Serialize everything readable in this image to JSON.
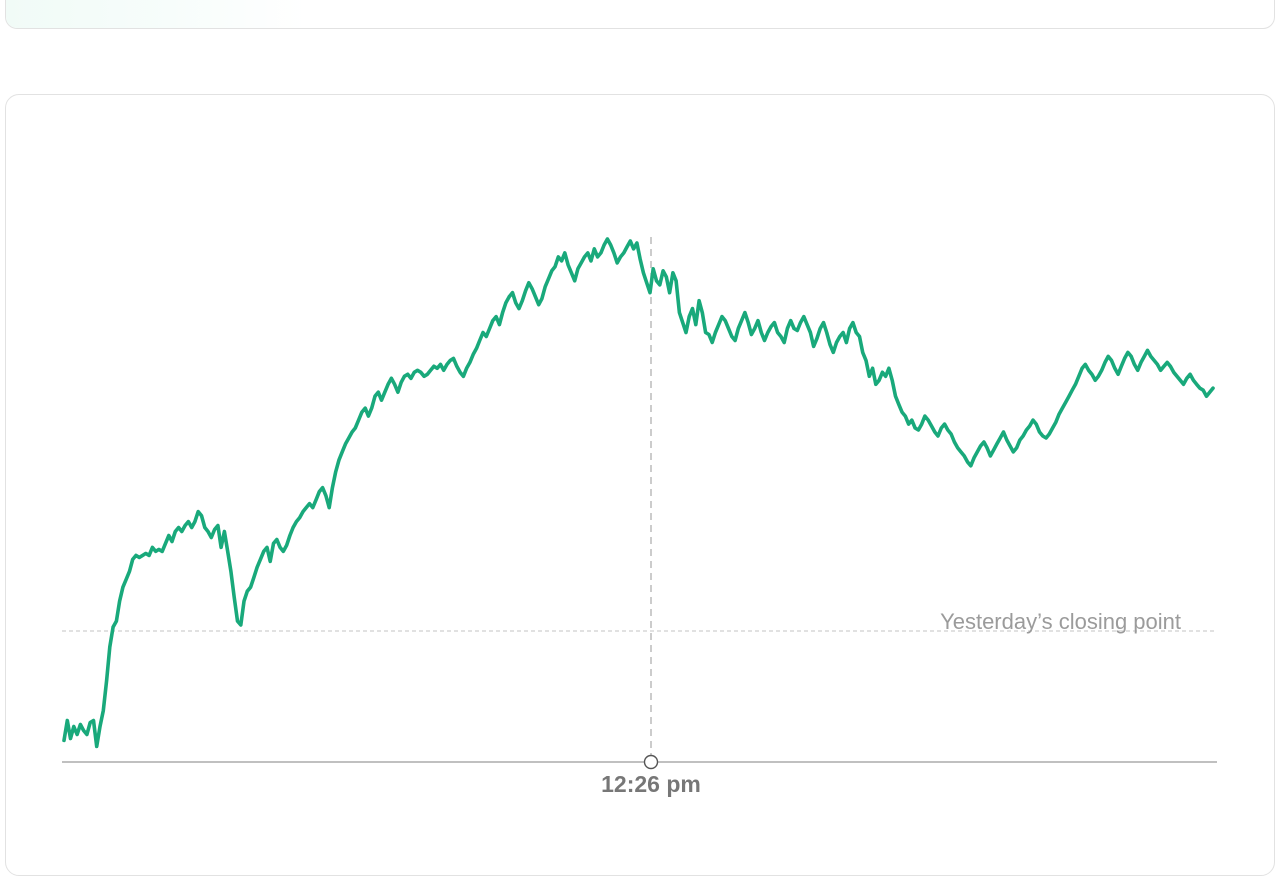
{
  "colors": {
    "line": "#19a97b",
    "baseline": "#cfcfcf",
    "crosshair": "#b0b0b0",
    "axis": "#9a9a9a",
    "baseline_label": "#9b9b9b",
    "time_label": "#777777"
  },
  "chart_data": {
    "type": "line",
    "title": "",
    "xlabel": "",
    "ylabel": "",
    "baseline_label": "Yesterday’s closing point",
    "hover_time": "12:26 pm",
    "hover_index": 120,
    "grid": false,
    "legend": "none",
    "y_axis": "unlabeled (relative level, yesterday's close = 0)",
    "values": [
      -55,
      -45,
      -54,
      -48,
      -52,
      -47,
      -50,
      -52,
      -46,
      -45,
      -58,
      -48,
      -40,
      -25,
      -8,
      2,
      5,
      15,
      22,
      26,
      30,
      36,
      38,
      37,
      38,
      39,
      38,
      42,
      40,
      41,
      40,
      44,
      48,
      45,
      50,
      52,
      50,
      53,
      55,
      52,
      55,
      60,
      58,
      52,
      50,
      47,
      51,
      53,
      42,
      50,
      40,
      30,
      17,
      5,
      3,
      15,
      20,
      22,
      27,
      32,
      36,
      40,
      42,
      35,
      44,
      46,
      42,
      40,
      43,
      48,
      52,
      55,
      57,
      60,
      62,
      64,
      62,
      66,
      70,
      72,
      68,
      62,
      72,
      80,
      86,
      90,
      94,
      97,
      100,
      102,
      106,
      110,
      112,
      108,
      112,
      118,
      120,
      116,
      120,
      124,
      127,
      124,
      120,
      125,
      128,
      129,
      127,
      130,
      131,
      130,
      128,
      129,
      131,
      133,
      132,
      134,
      131,
      134,
      136,
      137,
      133,
      130,
      128,
      132,
      135,
      139,
      142,
      146,
      150,
      148,
      152,
      156,
      158,
      154,
      160,
      165,
      168,
      170,
      165,
      162,
      166,
      171,
      175,
      172,
      168,
      164,
      167,
      173,
      177,
      181,
      183,
      188,
      186,
      190,
      184,
      180,
      176,
      182,
      185,
      188,
      190,
      186,
      192,
      188,
      190,
      194,
      197,
      194,
      190,
      185,
      188,
      190,
      193,
      196,
      192,
      195,
      187,
      180,
      175,
      170,
      182,
      176,
      174,
      181,
      178,
      170,
      180,
      176,
      160,
      155,
      150,
      158,
      162,
      154,
      166,
      160,
      150,
      149,
      145,
      150,
      154,
      158,
      156,
      152,
      148,
      146,
      152,
      156,
      160,
      155,
      149,
      152,
      156,
      150,
      146,
      150,
      153,
      155,
      150,
      148,
      145,
      152,
      156,
      152,
      151,
      155,
      158,
      154,
      150,
      143,
      147,
      152,
      155,
      150,
      144,
      140,
      145,
      148,
      150,
      145,
      152,
      155,
      150,
      148,
      140,
      136,
      128,
      132,
      124,
      126,
      130,
      128,
      132,
      126,
      118,
      114,
      110,
      108,
      104,
      106,
      102,
      101,
      104,
      108,
      106,
      103,
      100,
      98,
      102,
      104,
      101,
      99,
      95,
      92,
      90,
      88,
      85,
      83,
      87,
      90,
      93,
      95,
      92,
      88,
      91,
      94,
      97,
      100,
      96,
      93,
      90,
      92,
      96,
      98,
      101,
      103,
      106,
      104,
      100,
      98,
      97,
      99,
      102,
      105,
      109,
      112,
      115,
      118,
      121,
      124,
      128,
      132,
      134,
      131,
      129,
      126,
      128,
      131,
      135,
      138,
      136,
      132,
      129,
      133,
      137,
      140,
      138,
      134,
      131,
      135,
      138,
      141,
      138,
      136,
      134,
      131,
      133,
      135,
      133,
      130,
      128,
      126,
      124,
      127,
      129,
      126,
      124,
      122,
      121,
      118,
      120,
      122
    ],
    "ylim": [
      -70,
      210
    ]
  }
}
